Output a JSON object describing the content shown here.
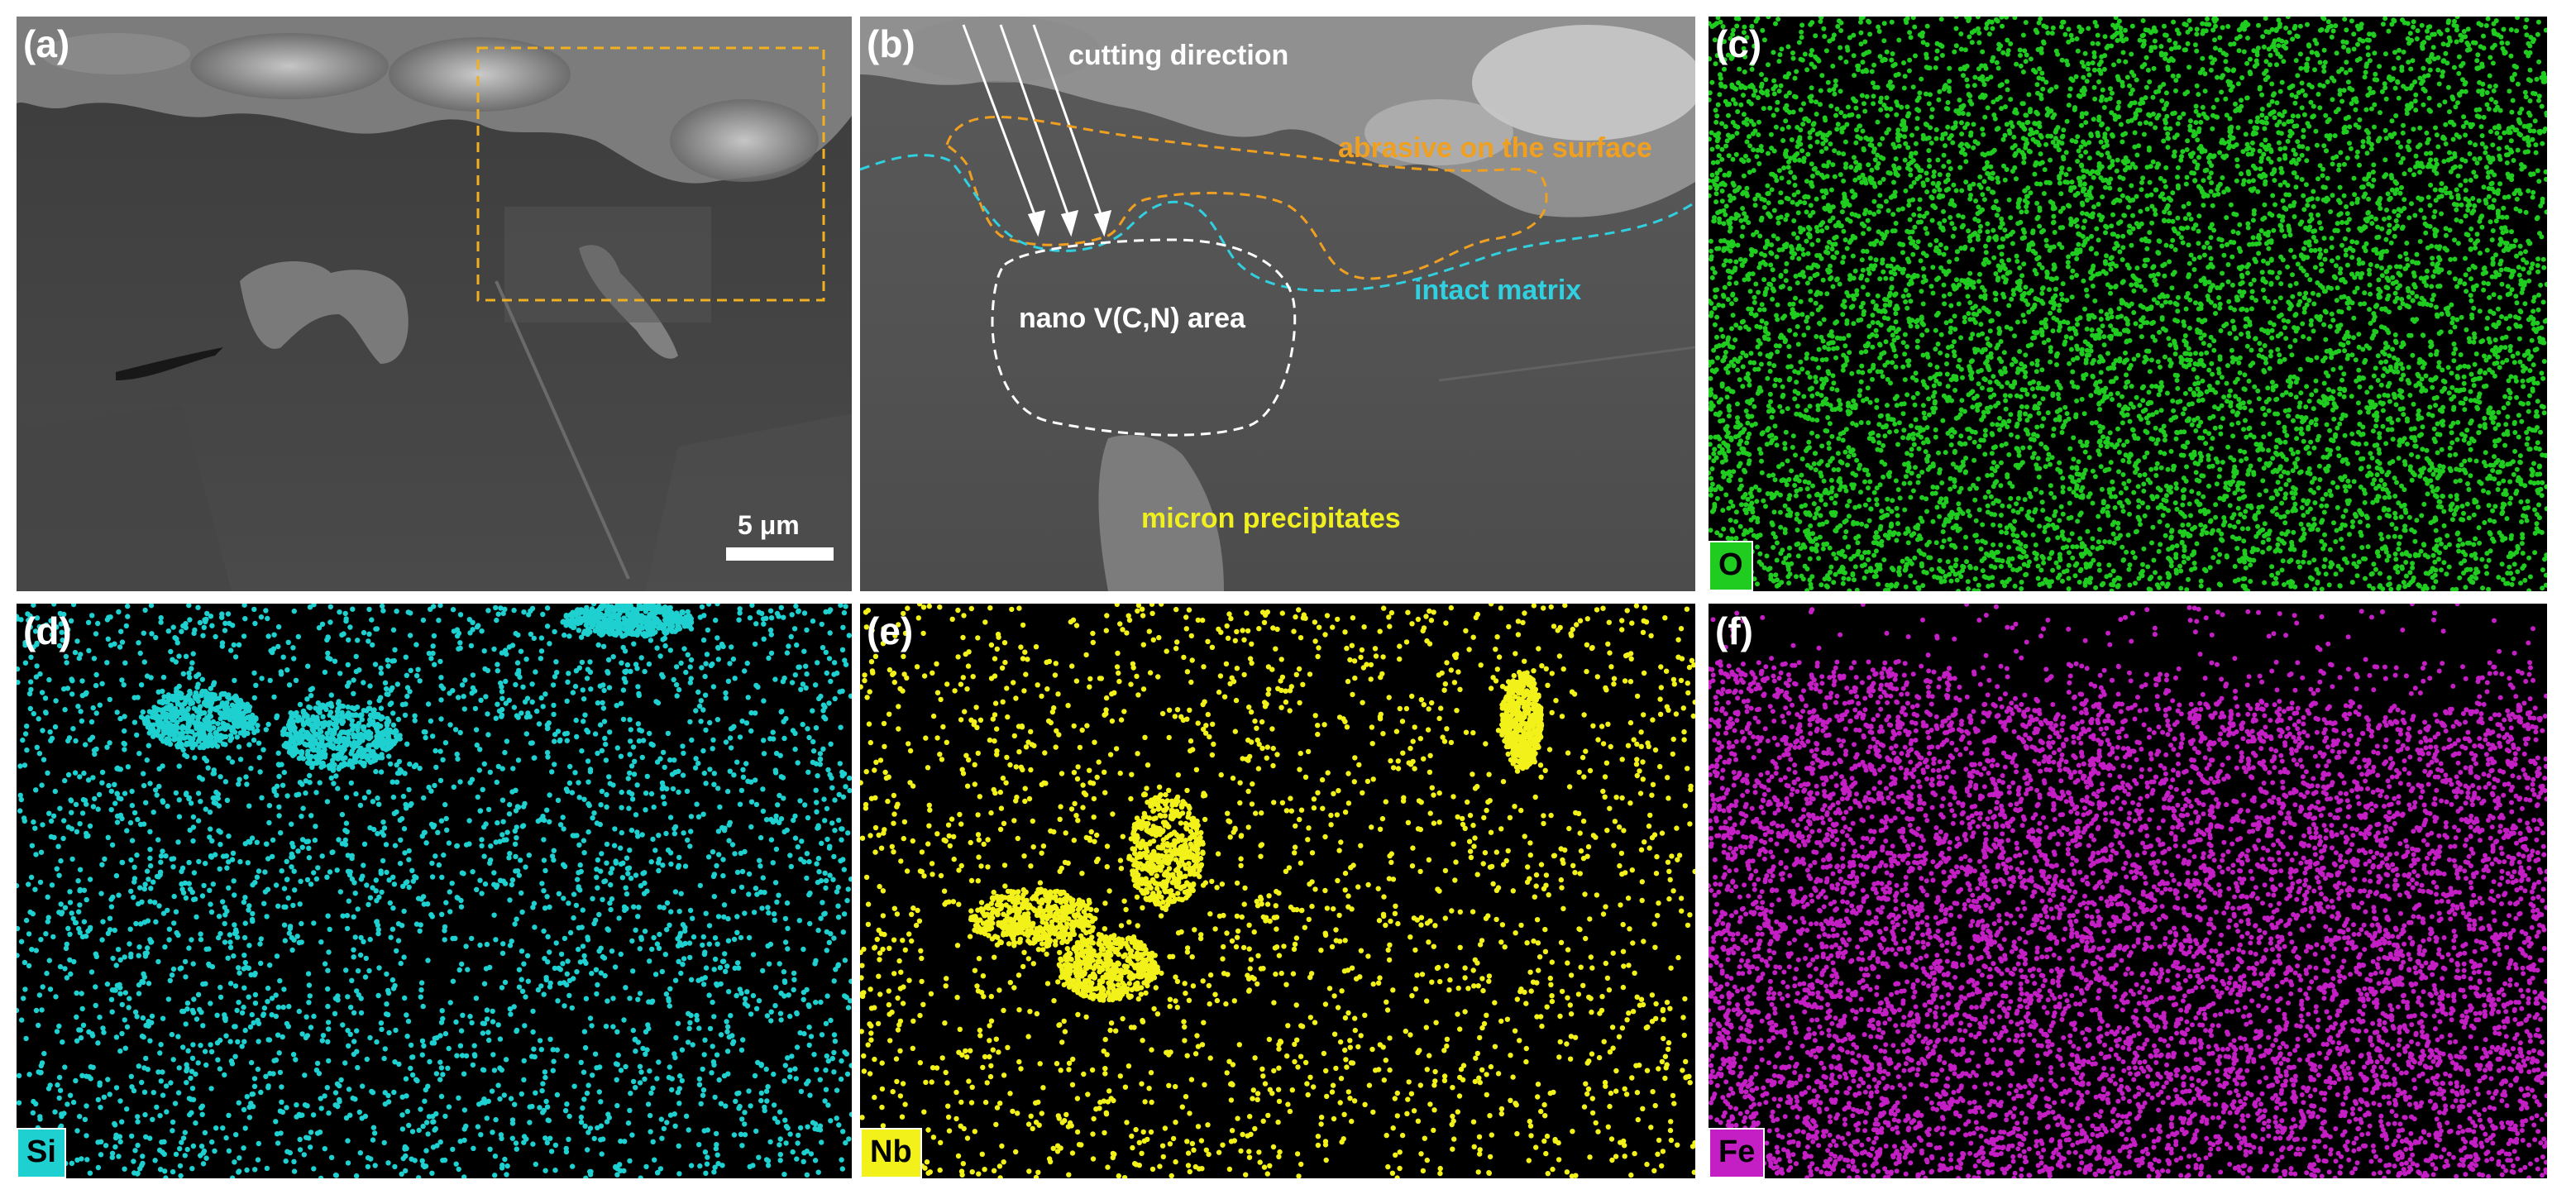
{
  "panels": {
    "a": {
      "label": "(a)",
      "scale_bar": "5 μm"
    },
    "b": {
      "label": "(b)",
      "annotations": {
        "cutting_direction": "cutting direction",
        "abrasive": "abrasive on the surface",
        "intact_matrix": "intact matrix",
        "nano_area": "nano V(C,N) area",
        "micron_precipitates": "micron precipitates"
      }
    },
    "c": {
      "label": "(c)",
      "element": "O",
      "color": "#1fcc1f"
    },
    "d": {
      "label": "(d)",
      "element": "Si",
      "color": "#1fd0d0"
    },
    "e": {
      "label": "(e)",
      "element": "Nb",
      "color": "#f2f21a"
    },
    "f": {
      "label": "(f)",
      "element": "Fe",
      "color": "#c41fc4"
    }
  },
  "colors": {
    "sem_gray": "#5a5a5a",
    "highlight_box": "#f0b020",
    "abrasive_line": "#f0a020",
    "matrix_line": "#30d0e0",
    "nano_outline": "#ffffff",
    "precipitates_text": "#f0f020"
  }
}
